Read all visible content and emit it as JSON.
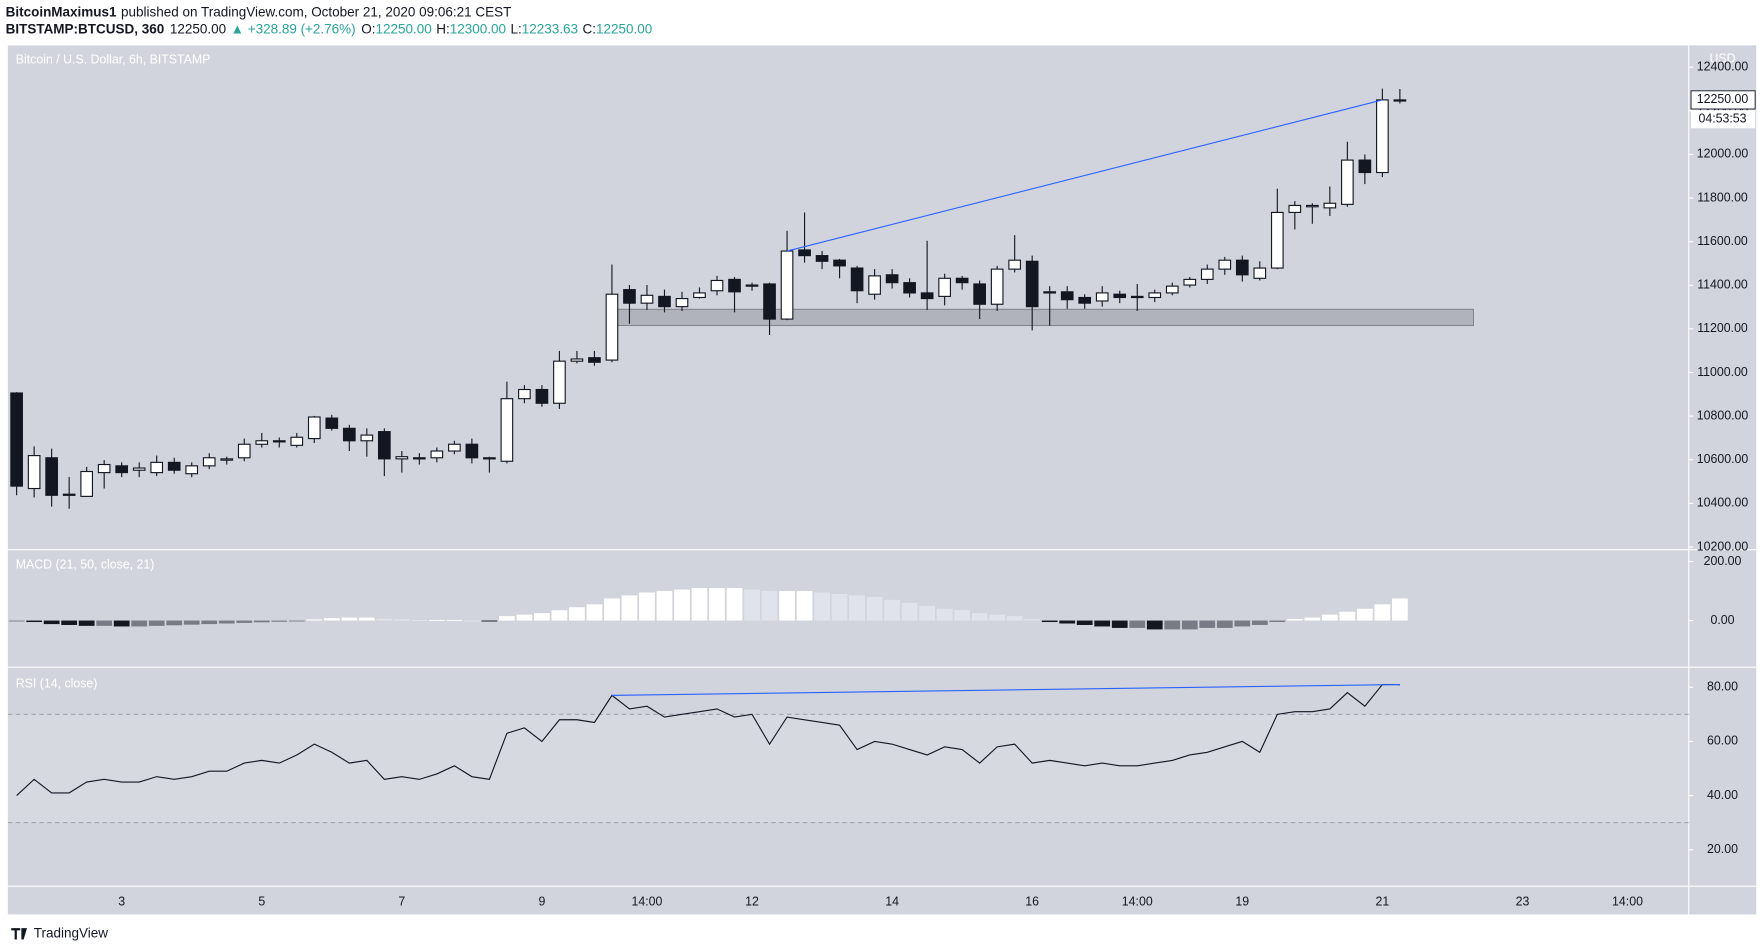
{
  "header": {
    "author": "BitcoinMaximus1",
    "published": "published on TradingView.com, October 21, 2020 09:06:21 CEST",
    "symbol": "BITSTAMP:BTCUSD, 360",
    "last": "12250.00",
    "change": "▲ +328.89 (+2.76%)",
    "change_color": "#26a69a",
    "ohlc": [
      {
        "label": "O:",
        "value": "12250.00"
      },
      {
        "label": "H:",
        "value": "12300.00"
      },
      {
        "label": "L:",
        "value": "12233.63"
      },
      {
        "label": "C:",
        "value": "12250.00"
      }
    ]
  },
  "chart_data": [
    {
      "type": "candlestick",
      "title": "Bitcoin / U.S. Dollar, 6h, BITSTAMP",
      "unit": "USD",
      "categories": [
        null,
        null,
        null,
        null,
        null,
        null,
        "3",
        null,
        null,
        null,
        null,
        null,
        null,
        null,
        "5",
        null,
        null,
        null,
        null,
        null,
        null,
        null,
        "7",
        null,
        null,
        null,
        null,
        null,
        null,
        null,
        "9",
        null,
        null,
        null,
        null,
        null,
        "14:00",
        null,
        null,
        null,
        null,
        null,
        "12",
        null,
        null,
        null,
        null,
        null,
        null,
        null,
        "14",
        null,
        null,
        null,
        null,
        null,
        null,
        null,
        "16",
        null,
        null,
        null,
        null,
        null,
        "14:00",
        null,
        null,
        null,
        null,
        null,
        "19",
        null,
        null,
        null,
        null,
        null,
        null,
        null,
        "21",
        null,
        null,
        null,
        null,
        null,
        null,
        null,
        "23",
        null,
        null,
        null,
        null,
        null,
        "14:00",
        null,
        null,
        null
      ],
      "open": [
        10906,
        10468,
        10609,
        10442,
        10432,
        10541,
        10572,
        10552,
        10541,
        10588,
        10536,
        10572,
        10598,
        10609,
        10671,
        10682,
        10666,
        10697,
        10791,
        10744,
        10687,
        10729,
        10604,
        10609,
        10609,
        10640,
        10671,
        10609,
        10593,
        10880,
        10922,
        10859,
        11052,
        11068,
        11057,
        11380,
        11318,
        11349,
        11302,
        11344,
        11375,
        11427,
        11396,
        11406,
        11245,
        11562,
        11536,
        11515,
        11479,
        11359,
        11448,
        11412,
        11365,
        11349,
        11432,
        11406,
        11313,
        11474,
        11510,
        11370,
        11370,
        11344,
        11328,
        11359,
        11344,
        11344,
        11365,
        11401,
        11427,
        11474,
        11515,
        11432,
        11479,
        11734,
        11760,
        11755,
        11771,
        11974,
        11917,
        12250,
        null,
        null,
        null,
        null,
        null,
        null,
        null,
        null,
        null,
        null,
        null,
        null,
        null,
        null,
        null,
        null
      ],
      "high": [
        10910,
        10661,
        10651,
        10520,
        10567,
        10598,
        10588,
        10588,
        10619,
        10609,
        10588,
        10630,
        10614,
        10697,
        10723,
        10702,
        10723,
        10801,
        10806,
        10760,
        10744,
        10744,
        10640,
        10630,
        10656,
        10687,
        10697,
        10614,
        10958,
        10942,
        10942,
        11099,
        11099,
        11099,
        11495,
        11401,
        11401,
        11380,
        11370,
        11390,
        11443,
        11438,
        11412,
        11412,
        11650,
        11734,
        11557,
        11521,
        11489,
        11474,
        11474,
        11432,
        11604,
        11453,
        11443,
        11422,
        11489,
        11630,
        11536,
        11396,
        11396,
        11359,
        11396,
        11375,
        11406,
        11380,
        11412,
        11438,
        11495,
        11530,
        11536,
        11510,
        11843,
        11786,
        11776,
        11853,
        12058,
        12000,
        12302,
        12300,
        null,
        null,
        null,
        null,
        null,
        null,
        null,
        null,
        null,
        null,
        null,
        null,
        null,
        null,
        null,
        null
      ],
      "low": [
        10437,
        10427,
        10385,
        10375,
        10432,
        10468,
        10520,
        10520,
        10525,
        10536,
        10520,
        10557,
        10578,
        10593,
        10656,
        10656,
        10656,
        10677,
        10734,
        10640,
        10614,
        10525,
        10541,
        10578,
        10588,
        10625,
        10583,
        10541,
        10583,
        10859,
        10843,
        10833,
        11042,
        11031,
        11047,
        11224,
        11287,
        11276,
        11282,
        11339,
        11354,
        11276,
        11375,
        11172,
        11240,
        11504,
        11474,
        11432,
        11318,
        11334,
        11385,
        11344,
        11287,
        11308,
        11380,
        11245,
        11282,
        11459,
        11193,
        11215,
        11292,
        11292,
        11302,
        11318,
        11282,
        11323,
        11354,
        11390,
        11406,
        11448,
        11417,
        11422,
        11474,
        11656,
        11682,
        11718,
        11760,
        11864,
        11896,
        12233.63,
        null,
        null,
        null,
        null,
        null,
        null,
        null,
        null,
        null,
        null,
        null,
        null,
        null,
        null,
        null,
        null
      ],
      "close": [
        10479,
        10619,
        10437,
        10437,
        10546,
        10578,
        10541,
        10562,
        10588,
        10552,
        10572,
        10609,
        10604,
        10671,
        10687,
        10687,
        10703,
        10796,
        10744,
        10687,
        10713,
        10604,
        10614,
        10604,
        10640,
        10671,
        10609,
        10604,
        10880,
        10922,
        10859,
        11052,
        11062,
        11047,
        11359,
        11318,
        11354,
        11302,
        11339,
        11365,
        11422,
        11370,
        11401,
        11245,
        11557,
        11536,
        11510,
        11489,
        11375,
        11443,
        11412,
        11365,
        11339,
        11432,
        11412,
        11313,
        11474,
        11515,
        11302,
        11365,
        11334,
        11318,
        11365,
        11344,
        11349,
        11365,
        11396,
        11427,
        11474,
        11515,
        11448,
        11479,
        11734,
        11766,
        11766,
        11776,
        11974,
        11917,
        12250,
        12250,
        null,
        null,
        null,
        null,
        null,
        null,
        null,
        null,
        null,
        null,
        null,
        null,
        null,
        null,
        null,
        null
      ],
      "colors": {
        "up": "#ffffff",
        "down": "#131722",
        "wick": "#131722"
      },
      "ylim": [
        10190,
        12500
      ],
      "yticks": [
        {
          "value": 10200,
          "label": "10200.00"
        },
        {
          "value": 10400,
          "label": "10400.00"
        },
        {
          "value": 10600,
          "label": "10600.00"
        },
        {
          "value": 10800,
          "label": "10800.00"
        },
        {
          "value": 11000,
          "label": "11000.00"
        },
        {
          "value": 11200,
          "label": "11200.00"
        },
        {
          "value": 11400,
          "label": "11400.00"
        },
        {
          "value": 11600,
          "label": "11600.00"
        },
        {
          "value": 11800,
          "label": "11800.00"
        },
        {
          "value": 12000,
          "label": "12000.00"
        },
        {
          "value": 12200,
          "label": "12200.00"
        },
        {
          "value": 12400,
          "label": "12400.00"
        }
      ],
      "last_price_label": "12250.00",
      "countdown": "04:53:53",
      "trendline_color": "#2962ff",
      "zone": {
        "low": 11215,
        "high": 11290,
        "color": "#9598a1"
      }
    },
    {
      "type": "bar",
      "title": "MACD (21, 50, close, 21)",
      "values": [
        -2,
        -5,
        -12,
        -15,
        -18,
        -18,
        -20,
        -20,
        -18,
        -16,
        -14,
        -12,
        -10,
        -8,
        -6,
        -4,
        -2,
        4,
        8,
        10,
        10,
        6,
        4,
        2,
        2,
        2,
        0,
        -1,
        15,
        20,
        25,
        35,
        45,
        55,
        75,
        85,
        95,
        100,
        105,
        110,
        110,
        110,
        105,
        100,
        100,
        100,
        95,
        90,
        85,
        80,
        70,
        60,
        50,
        40,
        35,
        25,
        20,
        15,
        5,
        -5,
        -10,
        -15,
        -20,
        -25,
        -25,
        -30,
        -30,
        -30,
        -25,
        -25,
        -20,
        -15,
        -5,
        5,
        10,
        20,
        30,
        40,
        55,
        75,
        null,
        null,
        null,
        null,
        null,
        null,
        null,
        null,
        null,
        null,
        null,
        null,
        null,
        null,
        null,
        null
      ],
      "colors": {
        "rising_above": "#ffffff",
        "falling_above": "#e0e3eb",
        "falling_below": "#131722",
        "rising_below": "#787b86"
      },
      "ylim": [
        -154,
        238
      ],
      "yticks": [
        {
          "value": 0,
          "label": "0.00"
        },
        {
          "value": 200,
          "label": "200.00"
        }
      ]
    },
    {
      "type": "line",
      "title": "RSI (14, close)",
      "values": [
        40,
        46,
        41,
        41,
        45,
        46,
        45,
        45,
        47,
        46,
        47,
        49,
        49,
        52,
        53,
        52,
        55,
        59,
        56,
        52,
        53,
        46,
        47,
        46,
        48,
        51,
        47,
        46,
        63,
        65,
        60,
        68,
        68,
        67,
        77,
        72,
        73,
        69,
        70,
        71,
        72,
        69,
        70,
        59,
        69,
        68,
        67,
        66,
        57,
        60,
        59,
        57,
        55,
        58,
        57,
        52,
        58,
        59,
        52,
        53,
        52,
        51,
        52,
        51,
        51,
        52,
        53,
        55,
        56,
        58,
        60,
        56,
        70,
        71,
        71,
        72,
        78,
        73,
        81,
        81,
        null,
        null,
        null,
        null,
        null,
        null,
        null,
        null,
        null,
        null,
        null,
        null,
        null,
        null,
        null,
        null
      ],
      "color": "#131722",
      "trendline_color": "#2962ff",
      "bands": [
        30,
        70
      ],
      "band_color": "#9598a1",
      "ylim": [
        7,
        87
      ],
      "yticks": [
        {
          "value": 20,
          "label": "20.00"
        },
        {
          "value": 40,
          "label": "40.00"
        },
        {
          "value": 60,
          "label": "60.00"
        },
        {
          "value": 80,
          "label": "80.00"
        }
      ]
    }
  ],
  "footer": {
    "brand": "TradingView"
  }
}
